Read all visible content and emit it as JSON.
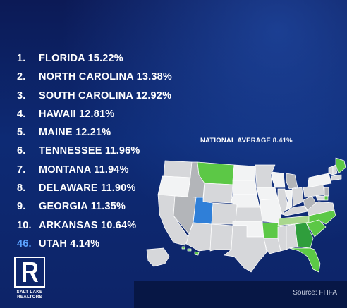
{
  "rankings": [
    {
      "rank": "1.",
      "label": "FLORIDA 15.22%"
    },
    {
      "rank": "2.",
      "label": "NORTH CAROLINA 13.38%"
    },
    {
      "rank": "3.",
      "label": "SOUTH CAROLINA 12.92%"
    },
    {
      "rank": "4.",
      "label": "HAWAII 12.81%"
    },
    {
      "rank": "5.",
      "label": "MAINE 12.21%"
    },
    {
      "rank": "6.",
      "label": "TENNESSEE 11.96%"
    },
    {
      "rank": "7.",
      "label": "MONTANA 11.94%"
    },
    {
      "rank": "8.",
      "label": "DELAWARE 11.90%"
    },
    {
      "rank": "9.",
      "label": "GEORGIA 11.35%"
    },
    {
      "rank": "10.",
      "label": "ARKANSAS 10.64%"
    },
    {
      "rank": "46.",
      "label": "UTAH 4.14%"
    }
  ],
  "map": {
    "caption": "NATIONAL AVERAGE 8.41%",
    "colors": {
      "top_ten": "#5cc846",
      "top_ten_dark": "#2f9e3c",
      "light_green": "#a9d78e",
      "utah": "#2f7fd8",
      "gray_light": "#d6d7da",
      "gray_mid": "#b3b5b9",
      "gray_dark": "#8f9297",
      "white": "#f2f3f4"
    }
  },
  "logo": {
    "letter": "R",
    "line1": "SALT LAKE",
    "line2": "REALTORS"
  },
  "source": "Source: FHFA"
}
